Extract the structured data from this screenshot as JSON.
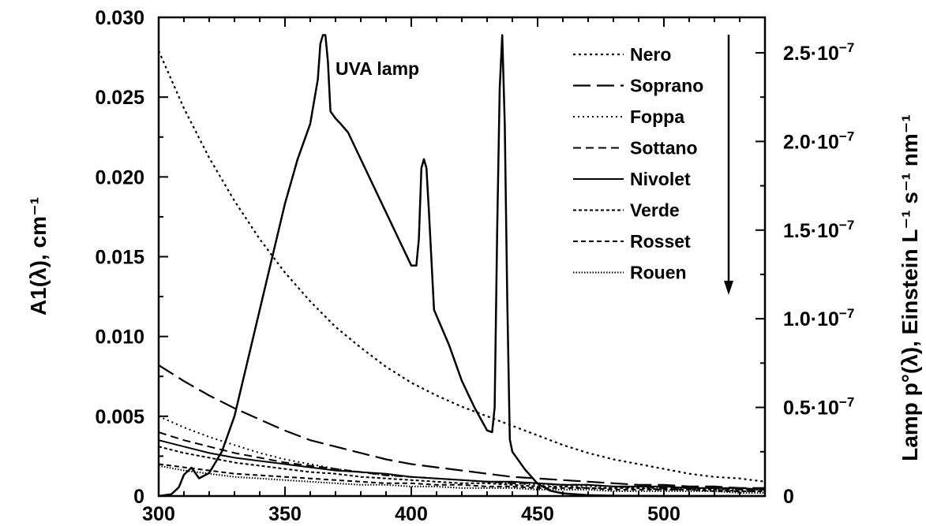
{
  "chart_data": {
    "type": "line",
    "title": "",
    "xlabel": "",
    "ylabel_left": "A1(λ), cm⁻¹",
    "ylabel_right": "Lamp p°(λ), Einstein L⁻¹ s⁻¹ nm⁻¹",
    "xlim": [
      300,
      540
    ],
    "ylim_left": [
      0,
      0.03
    ],
    "ylim_right": [
      0,
      2.7e-07
    ],
    "grid": false,
    "legend_placement": "top-right",
    "x_ticks": [
      300,
      350,
      400,
      450,
      500
    ],
    "x_tick_labels": [
      "300",
      "350",
      "400",
      "450",
      "500"
    ],
    "y_left_ticks": [
      0,
      0.005,
      0.01,
      0.015,
      0.02,
      0.025,
      0.03
    ],
    "y_left_tick_labels": [
      "0",
      "0.005",
      "0.010",
      "0.015",
      "0.020",
      "0.025",
      "0.030"
    ],
    "y_right_ticks": [
      0,
      5e-08,
      1e-07,
      1.5e-07,
      2e-07,
      2.5e-07
    ],
    "y_right_tick_labels": [
      "0",
      "0.5·10",
      "1.0·10",
      "1.5·10",
      "2.0·10",
      "2.5·10"
    ],
    "y_right_tick_label_exponent": "−7",
    "annotation_text": "UVA lamp",
    "x_grid": [
      300,
      310,
      320,
      330,
      340,
      350,
      360,
      370,
      380,
      390,
      400,
      410,
      420,
      430,
      440,
      450,
      460,
      470,
      480,
      490,
      500,
      510,
      520,
      530,
      540
    ],
    "series": [
      {
        "name": "Nero",
        "axis": "left",
        "dash": "3,4",
        "width": 2.2,
        "values": [
          0.0279,
          0.0243,
          0.0212,
          0.0185,
          0.0161,
          0.014,
          0.0122,
          0.0106,
          0.0093,
          0.0081,
          0.0071,
          0.0063,
          0.0056,
          0.005,
          0.0044,
          0.0038,
          0.0032,
          0.0027,
          0.0023,
          0.002,
          0.0017,
          0.0014,
          0.0012,
          0.0011,
          0.0009
        ]
      },
      {
        "name": "Soprano",
        "axis": "left",
        "dash": "22,8",
        "width": 2.2,
        "values": [
          0.0082,
          0.0072,
          0.0063,
          0.0055,
          0.0048,
          0.0041,
          0.0035,
          0.0031,
          0.0027,
          0.0023,
          0.002,
          0.0018,
          0.0016,
          0.0014,
          0.0012,
          0.0011,
          0.001,
          0.0009,
          0.0008,
          0.0007,
          0.0007,
          0.0006,
          0.0006,
          0.0005,
          0.0005
        ]
      },
      {
        "name": "Foppa",
        "axis": "left",
        "dash": "2,4",
        "width": 2,
        "values": [
          0.005,
          0.0043,
          0.0037,
          0.0032,
          0.0027,
          0.0023,
          0.002,
          0.0017,
          0.0015,
          0.0013,
          0.0012,
          0.0011,
          0.001,
          0.0009,
          0.0008,
          0.0007,
          0.0007,
          0.0006,
          0.0006,
          0.0005,
          0.0005,
          0.0005,
          0.0004,
          0.0004,
          0.0004
        ]
      },
      {
        "name": "Sottano",
        "axis": "left",
        "dash": "10,6",
        "width": 2,
        "values": [
          0.004,
          0.0035,
          0.0031,
          0.0027,
          0.0024,
          0.0021,
          0.0019,
          0.0017,
          0.0015,
          0.0013,
          0.0012,
          0.0011,
          0.001,
          0.0009,
          0.0008,
          0.0008,
          0.0007,
          0.0007,
          0.0006,
          0.0006,
          0.0005,
          0.0005,
          0.0005,
          0.0004,
          0.0004
        ]
      },
      {
        "name": "Nivolet",
        "axis": "left",
        "dash": "",
        "width": 2,
        "values": [
          0.0035,
          0.0031,
          0.0027,
          0.0024,
          0.0022,
          0.002,
          0.0018,
          0.0016,
          0.0015,
          0.0014,
          0.0012,
          0.0011,
          0.001,
          0.0009,
          0.0009,
          0.0008,
          0.0007,
          0.0007,
          0.0006,
          0.0006,
          0.0006,
          0.0005,
          0.0005,
          0.0005,
          0.0004
        ]
      },
      {
        "name": "Verde",
        "axis": "left",
        "dash": "4,3",
        "width": 2,
        "values": [
          0.0031,
          0.0027,
          0.0024,
          0.0021,
          0.0019,
          0.0017,
          0.0015,
          0.0014,
          0.0012,
          0.0011,
          0.001,
          0.0009,
          0.0008,
          0.0008,
          0.0007,
          0.0006,
          0.0006,
          0.0005,
          0.0005,
          0.0005,
          0.0004,
          0.0004,
          0.0004,
          0.0003,
          0.0003
        ]
      },
      {
        "name": "Rosset",
        "axis": "left",
        "dash": "6,4",
        "width": 2,
        "values": [
          0.002,
          0.0018,
          0.0016,
          0.0014,
          0.0013,
          0.0012,
          0.0011,
          0.001,
          0.0009,
          0.0008,
          0.0008,
          0.0007,
          0.0007,
          0.0006,
          0.0006,
          0.0005,
          0.0005,
          0.0005,
          0.0004,
          0.0004,
          0.0004,
          0.0004,
          0.0003,
          0.0003,
          0.0003
        ]
      },
      {
        "name": "Rouen",
        "axis": "left",
        "dash": "1.5,2",
        "width": 2,
        "values": [
          0.0019,
          0.0016,
          0.0014,
          0.0012,
          0.0011,
          0.001,
          0.0009,
          0.0008,
          0.0007,
          0.0007,
          0.0006,
          0.0006,
          0.0005,
          0.0005,
          0.0005,
          0.0004,
          0.0004,
          0.0004,
          0.0003,
          0.0003,
          0.0003,
          0.0003,
          0.0003,
          0.0002,
          0.0002
        ]
      }
    ],
    "lamp_series": {
      "axis": "right",
      "dash": "",
      "width": 2.5,
      "x": [
        300,
        305,
        308,
        310,
        313,
        316,
        320,
        325,
        330,
        335,
        340,
        345,
        350,
        355,
        360,
        363,
        364,
        365,
        366,
        367,
        368,
        370,
        372,
        375,
        380,
        385,
        390,
        395,
        400,
        402,
        403,
        404,
        405,
        406,
        407,
        409,
        415,
        420,
        425,
        430,
        432,
        433,
        434,
        435,
        436,
        437,
        438,
        439,
        440,
        445,
        450,
        455,
        460,
        470,
        480,
        490,
        500,
        510,
        520,
        530,
        540
      ],
      "y": [
        0,
        1e-09,
        5e-09,
        1.2e-08,
        1.6e-08,
        1e-08,
        1.3e-08,
        2.5e-08,
        4.5e-08,
        7.5e-08,
        1.05e-07,
        1.35e-07,
        1.65e-07,
        1.9e-07,
        2.1e-07,
        2.35e-07,
        2.55e-07,
        2.6e-07,
        2.6e-07,
        2.45e-07,
        2.17e-07,
        2.13e-07,
        2.1e-07,
        2.05e-07,
        1.9e-07,
        1.75e-07,
        1.6e-07,
        1.45e-07,
        1.3e-07,
        1.3e-07,
        1.45e-07,
        1.85e-07,
        1.9e-07,
        1.85e-07,
        1.6e-07,
        1.05e-07,
        8.5e-08,
        6.5e-08,
        5e-08,
        3.7e-08,
        3.6e-08,
        5e-08,
        1.5e-07,
        2.3e-07,
        2.6e-07,
        2.1e-07,
        1.1e-07,
        3.2e-08,
        2.5e-08,
        1.5e-08,
        7e-09,
        3e-09,
        1.5e-09,
        5e-10,
        2e-10,
        1e-10,
        0,
        0,
        0,
        0,
        0
      ]
    }
  }
}
